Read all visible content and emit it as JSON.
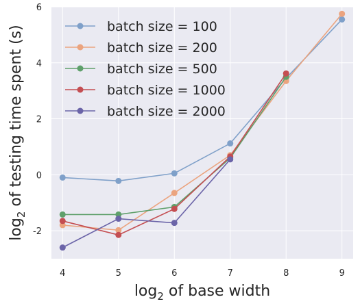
{
  "chart_data": {
    "type": "line",
    "xlabel_base": "log",
    "xlabel_sub": "2",
    "xlabel_rest": " of base width",
    "ylabel_base": "log",
    "ylabel_sub": "2",
    "ylabel_rest": " of testing time spent (s)",
    "xlim": [
      3.8,
      9.2
    ],
    "ylim": [
      -3.0,
      6.0
    ],
    "xticks": [
      4,
      5,
      6,
      7,
      8,
      9
    ],
    "yticks": [
      -2,
      0,
      2,
      4,
      6
    ],
    "grid": true,
    "legend_position": "top-left",
    "background": "#eaeaf2",
    "series": [
      {
        "name": "batch size = 100",
        "color": "#7fa0c9",
        "x": [
          4,
          5,
          6,
          7,
          8,
          9
        ],
        "y": [
          -0.1,
          -0.22,
          0.05,
          1.12,
          3.45,
          5.55
        ]
      },
      {
        "name": "batch size = 200",
        "color": "#eba47f",
        "x": [
          4,
          5,
          6,
          7,
          8,
          9
        ],
        "y": [
          -1.8,
          -1.98,
          -0.65,
          0.7,
          3.35,
          5.75
        ]
      },
      {
        "name": "batch size = 500",
        "color": "#5fa06b",
        "x": [
          4,
          5,
          6,
          7,
          8
        ],
        "y": [
          -1.42,
          -1.42,
          -1.15,
          0.6,
          3.5
        ]
      },
      {
        "name": "batch size = 1000",
        "color": "#c44e52",
        "x": [
          4,
          5,
          6,
          7,
          8
        ],
        "y": [
          -1.65,
          -2.15,
          -1.22,
          0.65,
          3.62
        ]
      },
      {
        "name": "batch size = 2000",
        "color": "#6b64a8",
        "x": [
          4,
          5,
          6,
          7
        ],
        "y": [
          -2.6,
          -1.57,
          -1.72,
          0.55
        ]
      }
    ]
  }
}
